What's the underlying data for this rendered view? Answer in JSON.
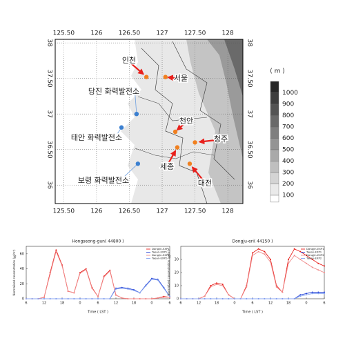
{
  "map": {
    "xlim": [
      125.37,
      128.23
    ],
    "ylim": [
      35.74,
      38.05
    ],
    "xticks": [
      {
        "value": 125.5,
        "label": "125.50"
      },
      126,
      {
        "value": 126.5,
        "label": "126.50"
      },
      127,
      {
        "value": 127.5,
        "label": "127.50"
      },
      128
    ],
    "yticks": [
      38,
      {
        "value": 37.5,
        "label": "37.50"
      },
      37,
      {
        "value": 36.5,
        "label": "36.50"
      },
      36
    ],
    "grid": true,
    "places": [
      {
        "label": "인천",
        "lon": 126.76,
        "lat": 37.52,
        "color": "#f08020",
        "label_color": "#e8201c"
      },
      {
        "label": "서울",
        "lon": 127.05,
        "lat": 37.52,
        "color": "#f08020",
        "label_color": "#e8201c"
      },
      {
        "label": "천안",
        "lon": 127.2,
        "lat": 36.75,
        "color": "#f08020",
        "label_color": "#e8201c"
      },
      {
        "label": "청주",
        "lon": 127.5,
        "lat": 36.6,
        "color": "#f08020",
        "label_color": "#e8201c"
      },
      {
        "label": "세종",
        "lon": 127.23,
        "lat": 36.53,
        "color": "#f08020",
        "label_color": "#e8201c"
      },
      {
        "label": "대전",
        "lon": 127.42,
        "lat": 36.3,
        "color": "#f08020",
        "label_color": "#e8201c"
      },
      {
        "label": "당진 화력발전소",
        "lon": 126.61,
        "lat": 37.0,
        "color": "#3a7fd0",
        "label_color": "#2a4fc8"
      },
      {
        "label": "태안 화력발전소",
        "lon": 126.38,
        "lat": 36.81,
        "color": "#3a7fd0",
        "label_color": "#2a4fc8"
      },
      {
        "label": "보령 화력발전소",
        "lon": 126.63,
        "lat": 36.3,
        "color": "#3a7fd0",
        "label_color": "#2a4fc8"
      }
    ],
    "colorbar": {
      "title": "( m )",
      "ticks": [
        1000,
        900,
        800,
        700,
        600,
        500,
        400,
        300,
        200,
        100
      ]
    }
  },
  "chart_data": [
    {
      "type": "line",
      "title": "Hongseong-gun( 44800 )",
      "xlabel": "Time ( LST )",
      "ylabel": "Normalized concentration (㎍/m³)",
      "x": [
        6,
        8,
        10,
        12,
        14,
        16,
        18,
        20,
        22,
        24,
        26,
        28,
        30,
        32,
        34,
        36,
        38,
        40,
        42,
        44,
        46,
        48,
        50,
        52,
        54
      ],
      "xlim": [
        6,
        54
      ],
      "xticks": [
        6,
        12,
        18,
        {
          "value": 24,
          "label": "0"
        },
        {
          "value": 30,
          "label": "6"
        },
        {
          "value": 36,
          "label": "12"
        },
        {
          "value": 42,
          "label": "18"
        },
        {
          "value": 48,
          "label": "0"
        },
        {
          "value": 54,
          "label": "6"
        }
      ],
      "ylim": [
        0,
        70
      ],
      "yticks": [
        0,
        20,
        40,
        60
      ],
      "legend": "upper right",
      "series": [
        {
          "name": "Dangjin-EXP1",
          "color": "#e8201c",
          "values": [
            0,
            0,
            0,
            2,
            35,
            65,
            45,
            10,
            8,
            35,
            40,
            15,
            3,
            30,
            38,
            5,
            1,
            0,
            0,
            0,
            0,
            0,
            1,
            3,
            2
          ]
        },
        {
          "name": "Taean-EXP1",
          "color": "#1f3fd6",
          "values": [
            0,
            0,
            0,
            0,
            0,
            0,
            0,
            0,
            0,
            0,
            0,
            0,
            0,
            0,
            0,
            14,
            15,
            14,
            12,
            8,
            18,
            27,
            26,
            15,
            3
          ]
        },
        {
          "name": "Dangjin-EXP2",
          "color": "#f08a8a",
          "values": [
            0,
            0,
            0,
            2,
            33,
            63,
            44,
            10,
            8,
            34,
            39,
            14,
            3,
            29,
            37,
            5,
            1,
            0,
            0,
            0,
            0,
            0,
            1,
            2,
            2
          ]
        },
        {
          "name": "Taean-EXP2",
          "color": "#8aa6f0",
          "values": [
            0,
            0,
            0,
            0,
            0,
            0,
            0,
            0,
            0,
            0,
            0,
            0,
            0,
            0,
            0,
            13,
            14,
            13,
            11,
            8,
            17,
            26,
            25,
            14,
            3
          ]
        }
      ]
    },
    {
      "type": "line",
      "title": "Dongju-eri( 44150 )",
      "xlabel": "Time ( LST )",
      "ylabel": "Normalized concentration (㎍/m³)",
      "x": [
        6,
        8,
        10,
        12,
        14,
        16,
        18,
        20,
        22,
        24,
        26,
        28,
        30,
        32,
        34,
        36,
        38,
        40,
        42,
        44,
        46,
        48,
        50,
        52,
        54
      ],
      "xlim": [
        6,
        54
      ],
      "xticks": [
        6,
        12,
        18,
        {
          "value": 24,
          "label": "0"
        },
        {
          "value": 30,
          "label": "6"
        },
        {
          "value": 36,
          "label": "12"
        },
        {
          "value": 42,
          "label": "18"
        },
        {
          "value": 48,
          "label": "0"
        },
        {
          "value": 54,
          "label": "6"
        }
      ],
      "ylim": [
        0,
        40
      ],
      "yticks": [
        0,
        10,
        20,
        30
      ],
      "legend": "upper right",
      "series": [
        {
          "name": "Dangjin-EXP1",
          "color": "#e8201c",
          "values": [
            0,
            0,
            0,
            0,
            2,
            10,
            12,
            11,
            3,
            0,
            0,
            10,
            35,
            38,
            36,
            30,
            10,
            5,
            30,
            38,
            36,
            33,
            30,
            27,
            25
          ]
        },
        {
          "name": "Taean-EXP1",
          "color": "#1f3fd6",
          "values": [
            0,
            0,
            0,
            0,
            0,
            0,
            0,
            0,
            0,
            0,
            0,
            0,
            0,
            0,
            0,
            0,
            0,
            0,
            0,
            0,
            3,
            4,
            5,
            5,
            5
          ]
        },
        {
          "name": "Dangjin-EXP2",
          "color": "#f08a8a",
          "values": [
            0,
            0,
            0,
            0,
            2,
            9,
            11,
            10,
            3,
            0,
            0,
            9,
            33,
            36,
            34,
            28,
            9,
            5,
            27,
            33,
            30,
            27,
            24,
            22,
            20
          ]
        },
        {
          "name": "Taean-EXP2",
          "color": "#8aa6f0",
          "values": [
            0,
            0,
            0,
            0,
            0,
            0,
            0,
            0,
            0,
            0,
            0,
            0,
            0,
            0,
            0,
            0,
            0,
            0,
            0,
            0,
            2,
            3,
            4,
            4,
            4
          ]
        }
      ]
    }
  ]
}
